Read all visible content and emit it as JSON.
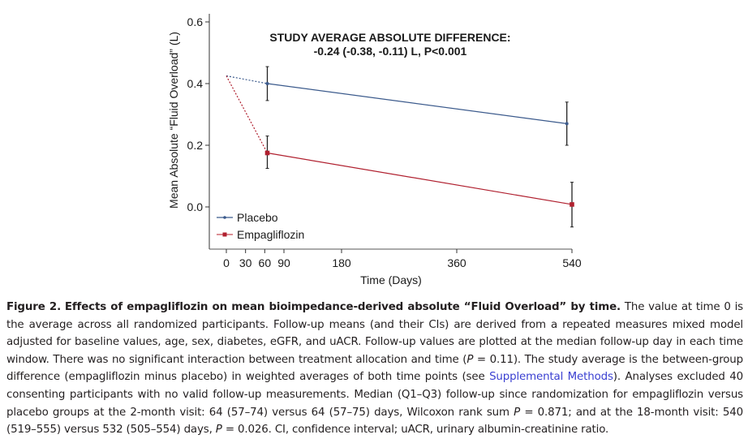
{
  "chart_data": {
    "type": "line",
    "title": "",
    "annotation": {
      "line1": "STUDY AVERAGE ABSOLUTE DIFFERENCE:",
      "line2": "-0.24 (-0.38, -0.11) L, P<0.001"
    },
    "xlabel": "Time (Days)",
    "ylabel": "Mean Absolute “Fluid Overload” (L)",
    "xlim": [
      -20,
      545
    ],
    "ylim": [
      -0.13,
      0.63
    ],
    "xticks": [
      0,
      30,
      60,
      90,
      180,
      360,
      540
    ],
    "xtick_labels": [
      "0",
      "30",
      "60",
      "90",
      "180",
      "360",
      "540"
    ],
    "yticks": [
      0.0,
      0.2,
      0.4,
      0.6
    ],
    "ytick_labels": [
      "0.0",
      "0.2",
      "0.4",
      "0.6"
    ],
    "grid": false,
    "legend": {
      "position": "bottom-left"
    },
    "series": [
      {
        "name": "Placebo",
        "color": "#3b5a8c",
        "marker": "circle",
        "baseline": {
          "x": 0,
          "y": 0.425
        },
        "points": [
          {
            "x": 64,
            "y": 0.4,
            "ci_low": 0.345,
            "ci_high": 0.455
          },
          {
            "x": 532,
            "y": 0.27,
            "ci_low": 0.2,
            "ci_high": 0.34
          }
        ]
      },
      {
        "name": "Empagliflozin",
        "color": "#b0202f",
        "marker": "square",
        "baseline": {
          "x": 0,
          "y": 0.425
        },
        "points": [
          {
            "x": 64,
            "y": 0.175,
            "ci_low": 0.125,
            "ci_high": 0.23
          },
          {
            "x": 540,
            "y": 0.008,
            "ci_low": -0.065,
            "ci_high": 0.08
          }
        ]
      }
    ]
  },
  "caption": {
    "label": "Figure 2.",
    "title": "Effects of empagliflozin on mean bioimpedance-derived absolute “Fluid Overload” by time.",
    "text_1": " The value at time 0 is the average across all randomized participants. Follow-up means (and their CIs) are derived from a repeated measures mixed model adjusted for baseline values, age, sex, diabetes, eGFR, and uACR. Follow-up values are plotted at the median follow-up day in each time window. There was no significant interaction between treatment allocation and time (",
    "p1_symbol": "P",
    "text_2": " = 0.11). The study average is the between-group difference (empagliflozin minus placebo) in weighted averages of both time points (see ",
    "link": "Supplemental Methods",
    "text_3": "). Analyses excluded 40 consenting participants with no valid follow-up measurements. Median (Q1–Q3) follow-up since randomization for empagliflozin versus placebo groups at the 2-month visit: 64 (57–74) versus 64 (57–75) days, Wilcoxon rank sum ",
    "p2_symbol": "P",
    "text_4": " = 0.871; and at the 18-month visit: 540 (519–555) versus 532 (505–554) days, ",
    "p3_symbol": "P",
    "text_5": " = 0.026. CI, confidence interval; uACR, urinary albumin-creatinine ratio."
  }
}
